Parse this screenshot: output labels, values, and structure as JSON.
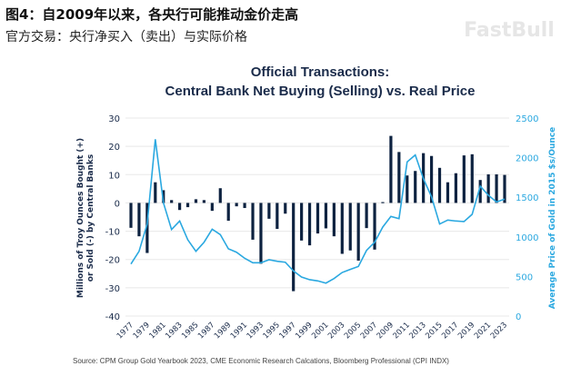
{
  "header": {
    "figure_title": "图4：自2009年以来，各央行可能推动金价走高",
    "subtitle": "官方交易：央行净买入（卖出）与实际价格"
  },
  "source": "Source: CPM Group Gold Yearbook 2023, CME Economic Research Calcations, Bloomberg Professional (CPI INDX)",
  "watermark": "FastBull",
  "chart_data": {
    "type": "bar",
    "title_line1": "Official Transactions:",
    "title_line2": "Central Bank Net Buying (Selling) vs. Real Price",
    "ylabel_left_line1": "Millions of Troy Ounces Bought (+)",
    "ylabel_left_line2": "or Sold (-) by Central Banks",
    "ylabel_right": "Average Price of Gold in 2015 $s/Ounce",
    "ylim_left": [
      -40,
      30
    ],
    "yticks_left": [
      "30",
      "20",
      "10",
      "0",
      "-10",
      "-20",
      "-30",
      "-40"
    ],
    "ylim_right": [
      0,
      2500
    ],
    "yticks_right": [
      "2500",
      "2000",
      "1500",
      "1000",
      "500",
      "0"
    ],
    "xtick_labels": [
      "1977",
      "1979",
      "1981",
      "1983",
      "1985",
      "1987",
      "1989",
      "1991",
      "1993",
      "1995",
      "1997",
      "1999",
      "2001",
      "2003",
      "2005",
      "2007",
      "2009",
      "2011",
      "2013",
      "2015",
      "2017",
      "2019",
      "2021",
      "2023"
    ],
    "grid": true,
    "colors": {
      "bars": "#0d2240",
      "line": "#2aa8e0",
      "title": "#1a2b4a",
      "right_axis": "#2aa8e0"
    },
    "years": [
      1977,
      1978,
      1979,
      1980,
      1981,
      1982,
      1983,
      1984,
      1985,
      1986,
      1987,
      1988,
      1989,
      1990,
      1991,
      1992,
      1993,
      1994,
      1995,
      1996,
      1997,
      1998,
      1999,
      2000,
      2001,
      2002,
      2003,
      2004,
      2005,
      2006,
      2007,
      2008,
      2009,
      2010,
      2011,
      2012,
      2013,
      2014,
      2015,
      2016,
      2017,
      2018,
      2019,
      2020,
      2021,
      2022,
      2023
    ],
    "series": [
      {
        "type": "bar",
        "axis": "left",
        "values": [
          -8.8,
          -11.8,
          -17.7,
          7.3,
          4.5,
          1,
          -2.5,
          -1.5,
          1.3,
          1,
          -2.8,
          5.2,
          -6.3,
          -1.2,
          -1.8,
          -13,
          -21.5,
          -5.6,
          -9.2,
          -3.8,
          -31.2,
          -13.3,
          -15,
          -10.8,
          -9,
          -11.8,
          -18,
          -16.8,
          -20.4,
          -8.9,
          -16.5,
          0.3,
          23.7,
          18,
          9.7,
          11.3,
          17.6,
          16.6,
          12.4,
          7.3,
          10.5,
          16.8,
          17.2,
          8.1,
          10.1,
          10.1,
          9.9
        ]
      },
      {
        "type": "line",
        "axis": "right",
        "values": [
          657,
          818,
          1162,
          2232,
          1430,
          1093,
          1200,
          963,
          818,
          932,
          1097,
          1029,
          849,
          806,
          730,
          673,
          673,
          711,
          692,
          680,
          570,
          493,
          459,
          444,
          416,
          474,
          550,
          589,
          627,
          829,
          932,
          1124,
          1258,
          1230,
          1946,
          2034,
          1735,
          1506,
          1162,
          1212,
          1200,
          1193,
          1284,
          1640,
          1525,
          1441,
          1476
        ]
      }
    ]
  }
}
